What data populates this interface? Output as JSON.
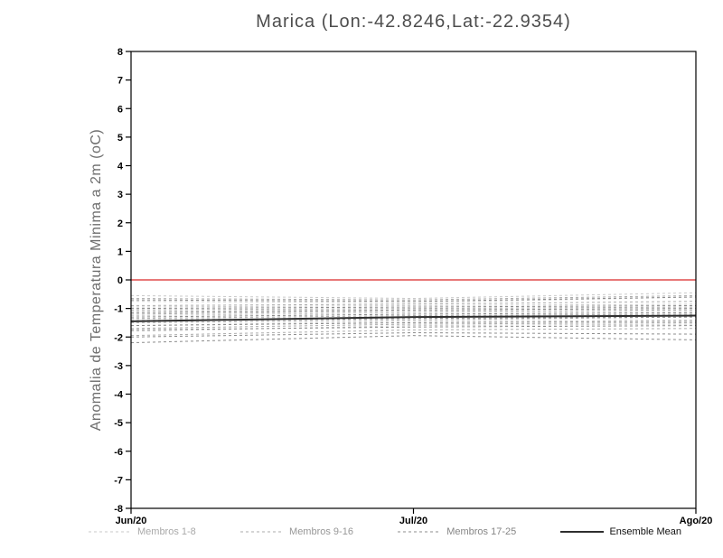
{
  "chart_data": {
    "type": "line",
    "title": "Marica (Lon:-42.8246,Lat:-22.9354)",
    "ylabel": "Anomalia de Temperatura Minima a 2m (oC)",
    "xlabel": "",
    "categories": [
      "Jun/20",
      "Jul/20",
      "Ago/20"
    ],
    "ylim": [
      -8,
      8
    ],
    "ytick_step": 1,
    "grid": false,
    "legend_position": "bottom",
    "zero_line": {
      "value": 0,
      "color": "#e14b4b"
    },
    "groups": [
      {
        "name": "Membros 1-8",
        "style": "dashed",
        "color": "#c9c9c9",
        "members": [
          [
            -0.55,
            -0.65,
            -0.45
          ],
          [
            -0.75,
            -0.8,
            -0.6
          ],
          [
            -0.95,
            -0.9,
            -0.85
          ],
          [
            -1.1,
            -1.05,
            -1.0
          ],
          [
            -1.25,
            -1.15,
            -1.1
          ],
          [
            -1.4,
            -1.3,
            -1.25
          ],
          [
            -1.6,
            -1.45,
            -1.4
          ],
          [
            -1.8,
            -1.6,
            -1.55
          ]
        ]
      },
      {
        "name": "Membros 9-16",
        "style": "dashed",
        "color": "#ababab",
        "members": [
          [
            -0.65,
            -0.7,
            -0.55
          ],
          [
            -0.9,
            -0.85,
            -0.75
          ],
          [
            -1.05,
            -1.0,
            -0.95
          ],
          [
            -1.2,
            -1.1,
            -1.05
          ],
          [
            -1.35,
            -1.25,
            -1.2
          ],
          [
            -1.5,
            -1.4,
            -1.3
          ],
          [
            -1.7,
            -1.55,
            -1.5
          ],
          [
            -1.95,
            -1.75,
            -1.7
          ]
        ]
      },
      {
        "name": "Membros 17-25",
        "style": "dashed",
        "color": "#8c8c8c",
        "members": [
          [
            -0.7,
            -0.75,
            -0.6
          ],
          [
            -1.0,
            -0.95,
            -0.9
          ],
          [
            -1.15,
            -1.05,
            -1.0
          ],
          [
            -1.3,
            -1.2,
            -1.15
          ],
          [
            -1.45,
            -1.35,
            -1.3
          ],
          [
            -1.6,
            -1.5,
            -1.45
          ],
          [
            -1.75,
            -1.65,
            -1.6
          ],
          [
            -2.0,
            -1.85,
            -1.9
          ],
          [
            -2.2,
            -1.95,
            -2.1
          ]
        ]
      }
    ],
    "mean": {
      "name": "Ensemble Mean",
      "style": "solid",
      "color": "#2e2e2e",
      "values": [
        -1.45,
        -1.3,
        -1.25
      ]
    }
  },
  "legend": {
    "entries": [
      {
        "label": "Membros 1-8",
        "style": "dashed",
        "line_color": "#c9c9c9",
        "text_color": "#a9a9a9"
      },
      {
        "label": "Membros 9-16",
        "style": "dashed",
        "line_color": "#ababab",
        "text_color": "#979797"
      },
      {
        "label": "Membros 17-25",
        "style": "dashed",
        "line_color": "#8c8c8c",
        "text_color": "#868686"
      },
      {
        "label": "Ensemble Mean",
        "style": "solid",
        "line_color": "#2e2e2e",
        "text_color": "#111111"
      }
    ]
  }
}
